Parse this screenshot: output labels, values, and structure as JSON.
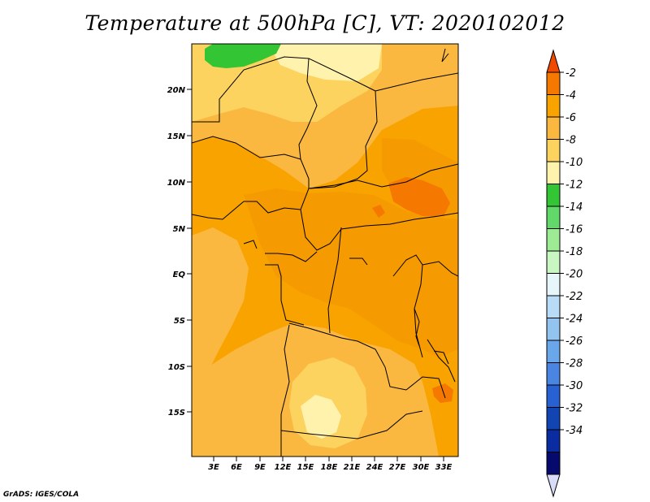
{
  "title": "Temperature at 500hPa [C], VT: 2020102012",
  "credit": "GrADS: IGES/COLA",
  "map": {
    "variable": "Temperature at 500hPa",
    "units": "C",
    "valid_time": "2020102012",
    "lat_ticks": [
      "20N",
      "15N",
      "10N",
      "5N",
      "EQ",
      "5S",
      "10S",
      "15S"
    ],
    "lon_ticks": [
      "3E",
      "6E",
      "9E",
      "12E",
      "15E",
      "18E",
      "21E",
      "24E",
      "27E",
      "30E",
      "33E"
    ]
  },
  "colorbar": {
    "labels": [
      "-2",
      "-4",
      "-6",
      "-8",
      "-10",
      "-12",
      "-14",
      "-16",
      "-18",
      "-20",
      "-22",
      "-24",
      "-26",
      "-28",
      "-30",
      "-32",
      "-34"
    ],
    "colors": [
      "#f04a00",
      "#f57800",
      "#f9a300",
      "#fbb840",
      "#fdd35f",
      "#fff2ad",
      "#33c533",
      "#62d76a",
      "#9eeb95",
      "#c9f6c2",
      "#e6f6fb",
      "#b8dcf7",
      "#93c4ef",
      "#6aa6ea",
      "#4a86e1",
      "#2862d2",
      "#1345b2",
      "#0b2ca0",
      "#060a6c",
      "#d8dcf6"
    ]
  }
}
